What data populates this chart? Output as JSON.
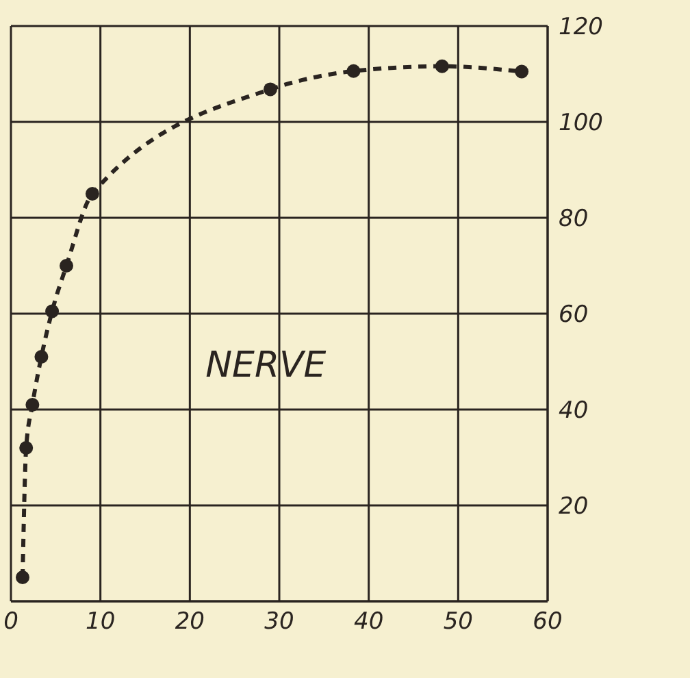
{
  "chart_data": {
    "type": "line",
    "annotations": [
      "NERVE"
    ],
    "x": [
      1.3,
      1.7,
      2.4,
      3.4,
      4.6,
      6.2,
      9.1,
      29,
      38.3,
      48.2,
      57.1
    ],
    "series": [
      {
        "color": "#2a2420",
        "values": [
          5,
          32,
          41,
          51,
          60.5,
          70,
          85,
          106.8,
          110.6,
          111.6,
          110.5
        ]
      }
    ],
    "xlim": [
      0,
      60
    ],
    "xticks": [
      0,
      10,
      20,
      30,
      40,
      50,
      60
    ],
    "ylim": [
      0,
      120
    ],
    "yticks": [
      20,
      40,
      60,
      80,
      100,
      120
    ],
    "grid": true,
    "marker": "circle",
    "line_style": "dashed",
    "legend": false
  }
}
